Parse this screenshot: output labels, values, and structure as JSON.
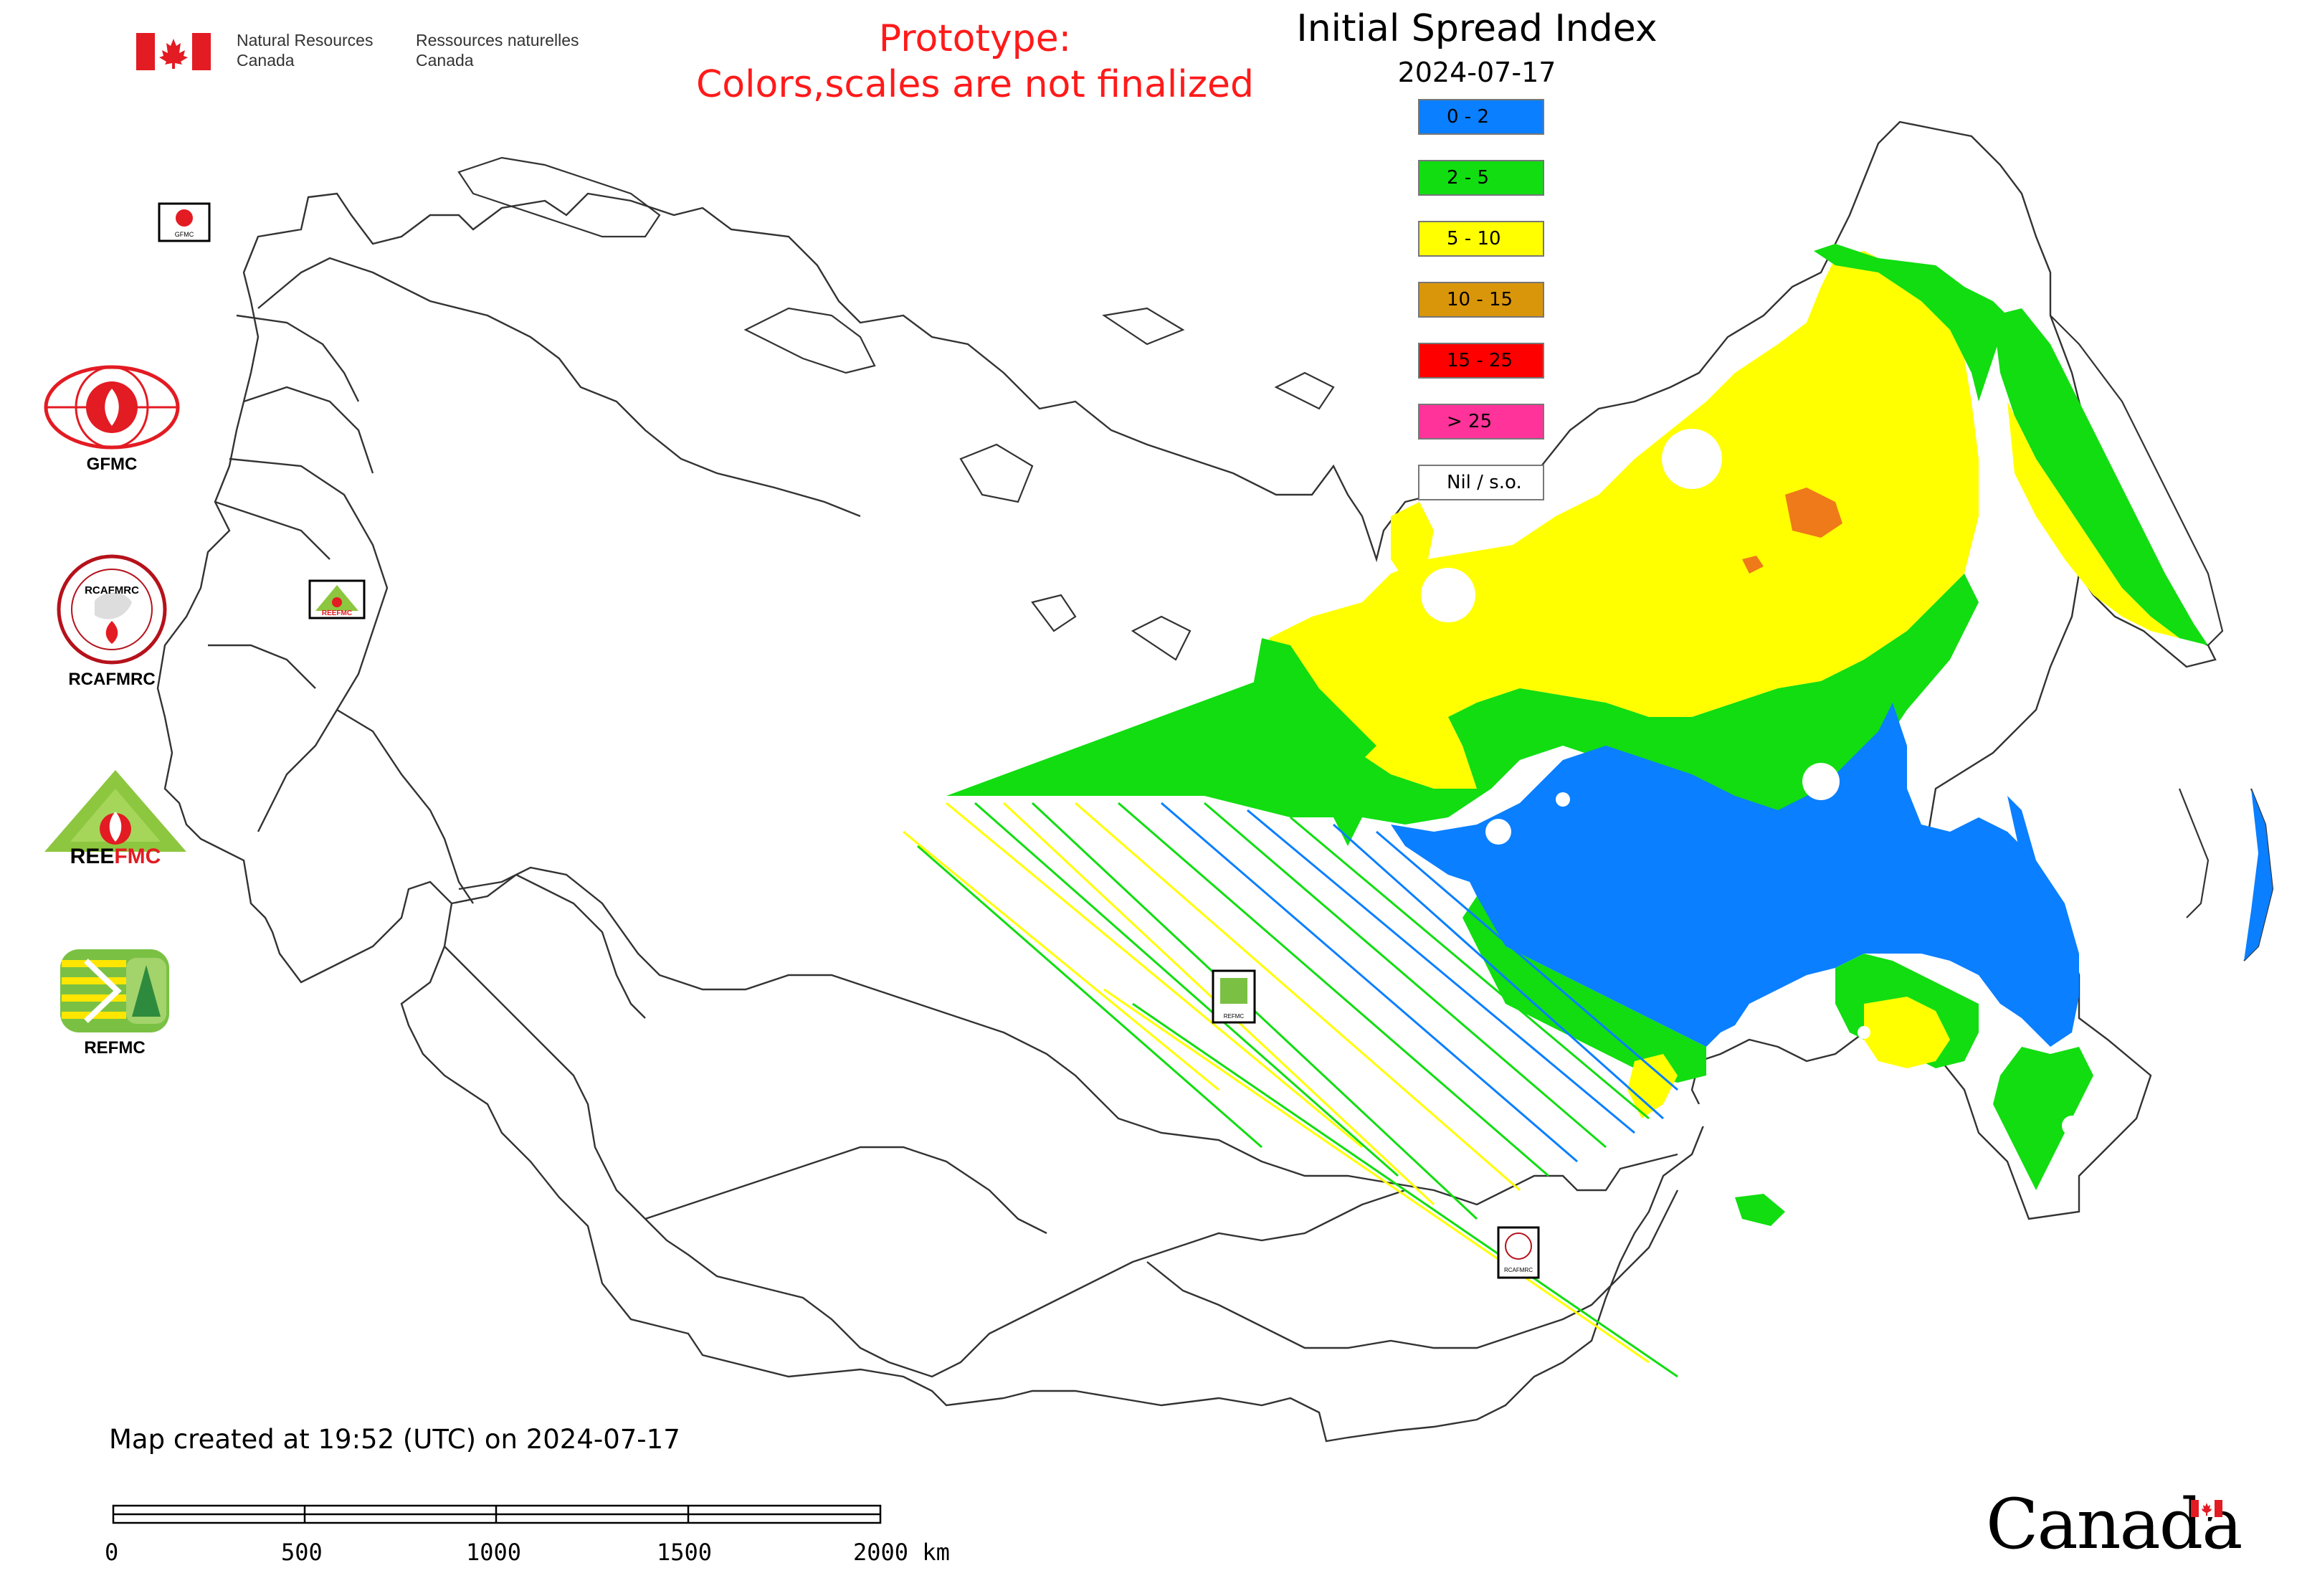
{
  "header": {
    "agency_en": [
      "Natural Resources",
      "Canada"
    ],
    "agency_fr": [
      "Ressources naturelles",
      "Canada"
    ],
    "prototype_line1": "Prototype:",
    "prototype_line2": "Colors,scales are not finalized",
    "title": "Initial Spread Index",
    "date": "2024-07-17"
  },
  "legend": {
    "items": [
      {
        "label": "0 - 2",
        "color": "#0a7fff"
      },
      {
        "label": "2 - 5",
        "color": "#11dd11"
      },
      {
        "label": "5 - 10",
        "color": "#ffff00"
      },
      {
        "label": "10 - 15",
        "color": "#d9960a"
      },
      {
        "label": "15 - 25",
        "color": "#ff0000"
      },
      {
        "label": "> 25",
        "color": "#ff3399"
      },
      {
        "label": "Nil / s.o.",
        "color": "#ffffff"
      }
    ]
  },
  "logos": [
    {
      "name": "GFMC",
      "label": "GFMC"
    },
    {
      "name": "RCAFMRC",
      "label": "RCAFMRC"
    },
    {
      "name": "REEFMC",
      "label": "REEFMC"
    },
    {
      "name": "REFMC",
      "label": "REFMC"
    }
  ],
  "map_markers": [
    {
      "label": "GFMC"
    },
    {
      "label": "REEFMC"
    },
    {
      "label": "REFMC"
    },
    {
      "label": "RCAFMRC"
    }
  ],
  "footer": {
    "created": "Map created at 19:52 (UTC) on 2024-07-17",
    "scale_labels": [
      "0",
      "500",
      "1000",
      "1500",
      "2000 km"
    ],
    "wordmark": "Canada"
  },
  "colors": {
    "flag_red": "#e31b23",
    "prototype_text": "#ff1a1a",
    "border_line": "#333333"
  }
}
